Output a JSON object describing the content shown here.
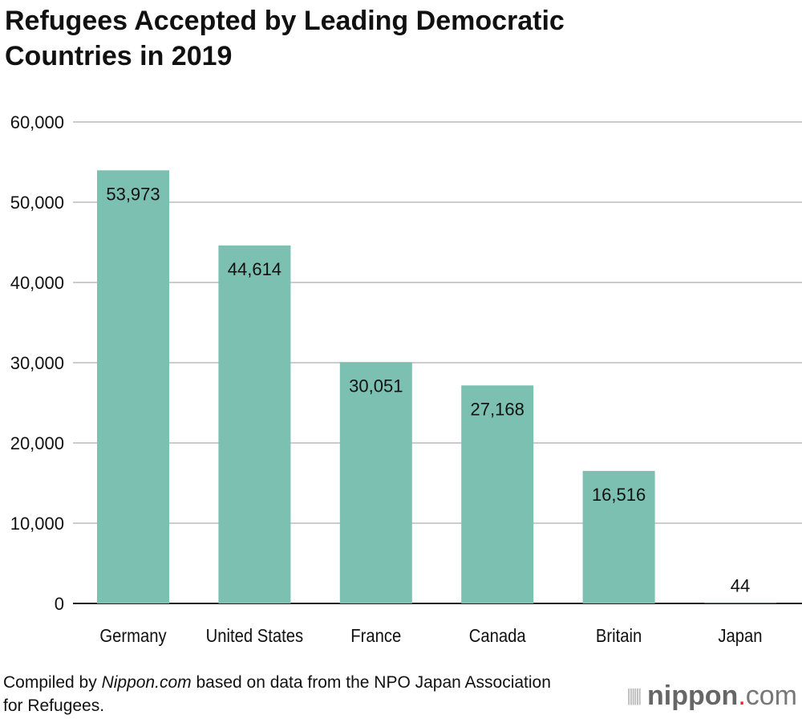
{
  "title": "Refugees Accepted by Leading Democratic Countries in 2019",
  "footer": {
    "prefix": "Compiled by ",
    "source_name": "Nippon.com",
    "suffix": " based on data from the NPO Japan Association for Refugees."
  },
  "logo": {
    "text_bold": "nippon",
    "dot": ".",
    "text_light": "com"
  },
  "colors": {
    "bar": "#7bc0b1",
    "grid": "#cccccc",
    "logo_dot": "#e8242c"
  },
  "chart_data": {
    "type": "bar",
    "title": "Refugees Accepted by Leading Democratic Countries in 2019",
    "categories": [
      "Germany",
      "United States",
      "France",
      "Canada",
      "Britain",
      "Japan"
    ],
    "values": [
      53973,
      44614,
      30051,
      27168,
      16516,
      44
    ],
    "value_labels": [
      "53,973",
      "44,614",
      "30,051",
      "27,168",
      "16,516",
      "44"
    ],
    "ylim": [
      0,
      60000
    ],
    "yticks": [
      0,
      10000,
      20000,
      30000,
      40000,
      50000,
      60000
    ],
    "ytick_labels": [
      "0",
      "10,000",
      "20,000",
      "30,000",
      "40,000",
      "50,000",
      "60,000"
    ],
    "grid": true,
    "xlabel": "",
    "ylabel": ""
  }
}
